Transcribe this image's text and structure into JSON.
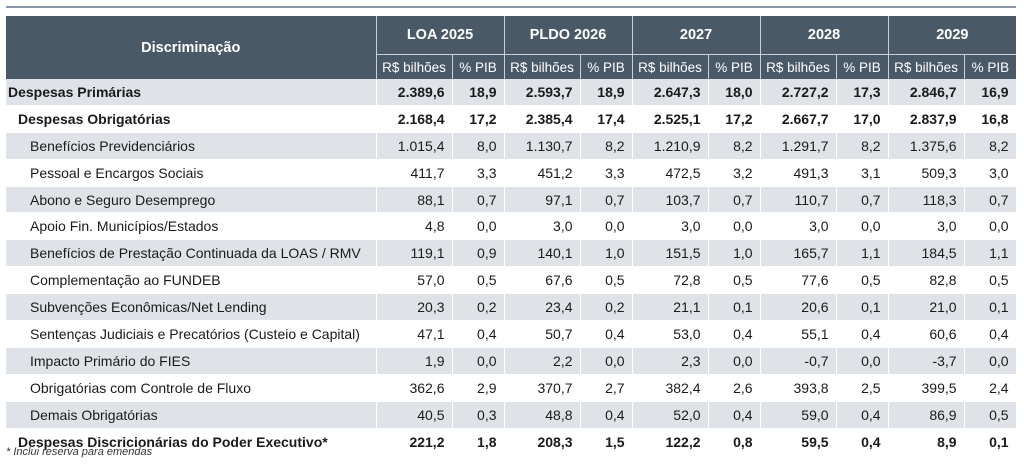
{
  "header": {
    "row_label": "Discriminação",
    "periods": [
      "LOA 2025",
      "PLDO 2026",
      "2027",
      "2028",
      "2029"
    ],
    "unit_value": "R$ bilhões",
    "unit_pct": "% PIB"
  },
  "rows": [
    {
      "label": "Despesas Primárias",
      "level": 0,
      "bold": true,
      "cells": [
        "2.389,6",
        "18,9",
        "2.593,7",
        "18,9",
        "2.647,3",
        "18,0",
        "2.727,2",
        "17,3",
        "2.846,7",
        "16,9"
      ]
    },
    {
      "label": "Despesas Obrigatórias",
      "level": 1,
      "bold": true,
      "cells": [
        "2.168,4",
        "17,2",
        "2.385,4",
        "17,4",
        "2.525,1",
        "17,2",
        "2.667,7",
        "17,0",
        "2.837,9",
        "16,8"
      ]
    },
    {
      "label": "Benefícios Previdenciários",
      "level": 2,
      "bold": false,
      "cells": [
        "1.015,4",
        "8,0",
        "1.130,7",
        "8,2",
        "1.210,9",
        "8,2",
        "1.291,7",
        "8,2",
        "1.375,6",
        "8,2"
      ]
    },
    {
      "label": "Pessoal e Encargos Sociais",
      "level": 2,
      "bold": false,
      "cells": [
        "411,7",
        "3,3",
        "451,2",
        "3,3",
        "472,5",
        "3,2",
        "491,3",
        "3,1",
        "509,3",
        "3,0"
      ]
    },
    {
      "label": "Abono e Seguro Desemprego",
      "level": 2,
      "bold": false,
      "cells": [
        "88,1",
        "0,7",
        "97,1",
        "0,7",
        "103,7",
        "0,7",
        "110,7",
        "0,7",
        "118,3",
        "0,7"
      ]
    },
    {
      "label": "Apoio Fin. Municípios/Estados",
      "level": 2,
      "bold": false,
      "cells": [
        "4,8",
        "0,0",
        "3,0",
        "0,0",
        "3,0",
        "0,0",
        "3,0",
        "0,0",
        "3,0",
        "0,0"
      ]
    },
    {
      "label": "Benefícios de Prestação Continuada da LOAS / RMV",
      "level": 2,
      "bold": false,
      "cells": [
        "119,1",
        "0,9",
        "140,1",
        "1,0",
        "151,5",
        "1,0",
        "165,7",
        "1,1",
        "184,5",
        "1,1"
      ]
    },
    {
      "label": "Complementação ao FUNDEB",
      "level": 2,
      "bold": false,
      "cells": [
        "57,0",
        "0,5",
        "67,6",
        "0,5",
        "72,8",
        "0,5",
        "77,6",
        "0,5",
        "82,8",
        "0,5"
      ]
    },
    {
      "label": "Subvenções Econômicas/Net Lending",
      "level": 2,
      "bold": false,
      "cells": [
        "20,3",
        "0,2",
        "23,4",
        "0,2",
        "21,1",
        "0,1",
        "20,6",
        "0,1",
        "21,0",
        "0,1"
      ]
    },
    {
      "label": "Sentenças Judiciais e Precatórios (Custeio e Capital)",
      "level": 2,
      "bold": false,
      "cells": [
        "47,1",
        "0,4",
        "50,7",
        "0,4",
        "53,0",
        "0,4",
        "55,1",
        "0,4",
        "60,6",
        "0,4"
      ]
    },
    {
      "label": "Impacto Primário do FIES",
      "level": 2,
      "bold": false,
      "cells": [
        "1,9",
        "0,0",
        "2,2",
        "0,0",
        "2,3",
        "0,0",
        "-0,7",
        "0,0",
        "-3,7",
        "0,0"
      ]
    },
    {
      "label": "Obrigatórias com Controle de Fluxo",
      "level": 2,
      "bold": false,
      "cells": [
        "362,6",
        "2,9",
        "370,7",
        "2,7",
        "382,4",
        "2,6",
        "393,8",
        "2,5",
        "399,5",
        "2,4"
      ]
    },
    {
      "label": "Demais Obrigatórias",
      "level": 2,
      "bold": false,
      "cells": [
        "40,5",
        "0,3",
        "48,8",
        "0,4",
        "52,0",
        "0,4",
        "59,0",
        "0,4",
        "86,9",
        "0,5"
      ]
    },
    {
      "label": "Despesas Discricionárias do Poder Executivo*",
      "level": 1,
      "bold": true,
      "cells": [
        "221,2",
        "1,8",
        "208,3",
        "1,5",
        "122,2",
        "0,8",
        "59,5",
        "0,4",
        "8,9",
        "0,1"
      ]
    }
  ],
  "footnote": "* Inclui reserva para emendas"
}
